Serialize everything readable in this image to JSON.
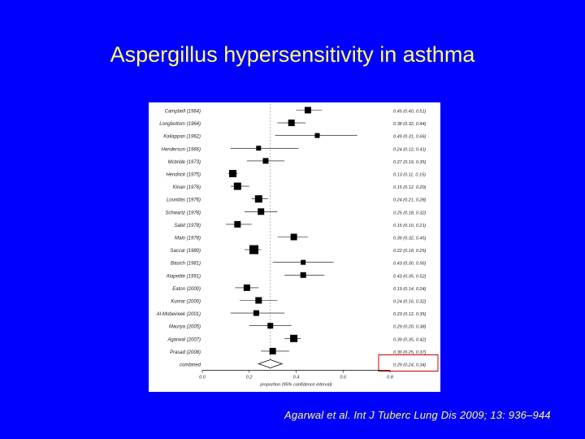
{
  "slide": {
    "title": "Aspergillus hypersensitivity in asthma",
    "citation": "Agarwal et al. Int J Tuberc Lung Dis 2009; 13: 936–944"
  },
  "colors": {
    "background": "#0000ff",
    "text": "#ffff66",
    "marker": "#000000",
    "highlight_box": "#cc0000"
  },
  "chart_data": {
    "type": "forest",
    "xlabel": "proportion (95% confidence interval)",
    "xlim": [
      0.0,
      0.8
    ],
    "xticks": [
      "0.0",
      "0.2",
      "0.4",
      "0.6",
      "0.8"
    ],
    "reference_line": 0.29,
    "studies": [
      {
        "name": "Campbell (1964)",
        "estimate": 0.45,
        "lower": 0.4,
        "upper": 0.51,
        "label": "0.45 (0.40, 0.51)"
      },
      {
        "name": "Longbottom (1964)",
        "estimate": 0.38,
        "lower": 0.32,
        "upper": 0.44,
        "label": "0.38 (0.32, 0.44)"
      },
      {
        "name": "Kaliappan (1962)",
        "estimate": 0.49,
        "lower": 0.31,
        "upper": 0.66,
        "label": "0.49 (0.31, 0.66)"
      },
      {
        "name": "Henderson (1966)",
        "estimate": 0.24,
        "lower": 0.12,
        "upper": 0.41,
        "label": "0.24 (0.12, 0.41)"
      },
      {
        "name": "Mcbride (1973)",
        "estimate": 0.27,
        "lower": 0.19,
        "upper": 0.35,
        "label": "0.27 (0.19, 0.35)"
      },
      {
        "name": "Hendrick (1975)",
        "estimate": 0.13,
        "lower": 0.11,
        "upper": 0.15,
        "label": "0.13 (0.11, 0.15)"
      },
      {
        "name": "Kinan (1976)",
        "estimate": 0.15,
        "lower": 0.12,
        "upper": 0.2,
        "label": "0.15 (0.12, 0.20)"
      },
      {
        "name": "Louridas (1976)",
        "estimate": 0.24,
        "lower": 0.21,
        "upper": 0.28,
        "label": "0.24 (0.21, 0.28)"
      },
      {
        "name": "Schwartz (1978)",
        "estimate": 0.25,
        "lower": 0.18,
        "upper": 0.32,
        "label": "0.25 (0.18, 0.32)"
      },
      {
        "name": "Sabit (1978)",
        "estimate": 0.15,
        "lower": 0.1,
        "upper": 0.21,
        "label": "0.15 (0.10, 0.21)"
      },
      {
        "name": "Malo (1978)",
        "estimate": 0.39,
        "lower": 0.32,
        "upper": 0.45,
        "label": "0.39 (0.32, 0.45)"
      },
      {
        "name": "Saccar (1980)",
        "estimate": 0.22,
        "lower": 0.18,
        "upper": 0.25,
        "label": "0.22 (0.18, 0.25)"
      },
      {
        "name": "Basich (1981)",
        "estimate": 0.43,
        "lower": 0.3,
        "upper": 0.56,
        "label": "0.43 (0.30, 0.56)"
      },
      {
        "name": "Alapetite (1991)",
        "estimate": 0.43,
        "lower": 0.35,
        "upper": 0.52,
        "label": "0.43 (0.35, 0.52)"
      },
      {
        "name": "Eaton (2000)",
        "estimate": 0.19,
        "lower": 0.14,
        "upper": 0.24,
        "label": "0.19 (0.14, 0.24)"
      },
      {
        "name": "Kumar (2000)",
        "estimate": 0.24,
        "lower": 0.16,
        "upper": 0.32,
        "label": "0.24 (0.16, 0.32)"
      },
      {
        "name": "Al-Mobeireek (2001)",
        "estimate": 0.23,
        "lower": 0.12,
        "upper": 0.35,
        "label": "0.23 (0.12, 0.35)"
      },
      {
        "name": "Maurya (2005)",
        "estimate": 0.29,
        "lower": 0.2,
        "upper": 0.38,
        "label": "0.29 (0.20, 0.38)"
      },
      {
        "name": "Agarwal (2007)",
        "estimate": 0.39,
        "lower": 0.35,
        "upper": 0.42,
        "label": "0.39 (0.35, 0.42)"
      },
      {
        "name": "Prasad (2008)",
        "estimate": 0.3,
        "lower": 0.25,
        "upper": 0.37,
        "label": "0.30 (0.25, 0.37)"
      }
    ],
    "combined": {
      "name": "combined",
      "estimate": 0.29,
      "lower": 0.24,
      "upper": 0.34,
      "label": "0.29 (0.24, 0.34)"
    },
    "weights": [
      8,
      8,
      6,
      6,
      7,
      9,
      9,
      9,
      8,
      8,
      8,
      11,
      6,
      7,
      8,
      8,
      7,
      7,
      9,
      8
    ]
  }
}
